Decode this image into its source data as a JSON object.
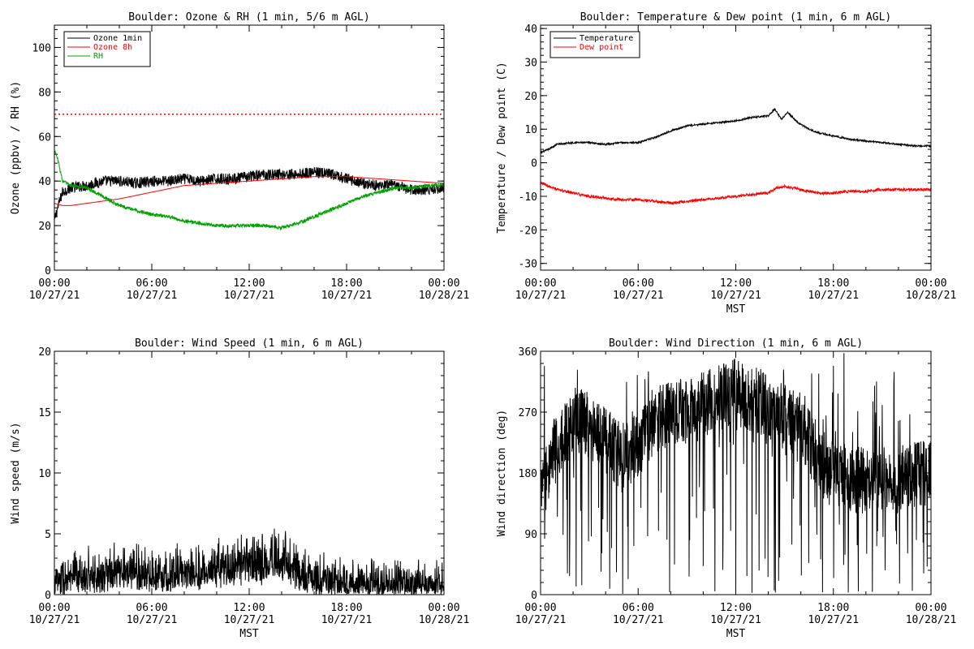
{
  "chart_data": [
    {
      "type": "line",
      "title": "Boulder: Ozone & RH (1 min, 5/6 m AGL)",
      "ylabel": "Ozone (ppbv) / RH (%)",
      "xlabel": "",
      "ylim": [
        0,
        110
      ],
      "yticks": [
        "0",
        "20",
        "40",
        "60",
        "80",
        "100"
      ],
      "xticks": [
        [
          "00:00",
          "10/27/21"
        ],
        [
          "06:00",
          "10/27/21"
        ],
        [
          "12:00",
          "10/27/21"
        ],
        [
          "18:00",
          "10/27/21"
        ],
        [
          "00:00",
          "10/28/21"
        ]
      ],
      "xlim_hours": [
        0,
        24
      ],
      "legend": "top-left",
      "reference_line": {
        "y": 70,
        "color": "#ff0000",
        "style": "dotted"
      },
      "series": [
        {
          "name": "Ozone 1min",
          "color": "#000000",
          "noise": 2.5,
          "x": [
            0,
            0.2,
            0.5,
            1,
            2,
            3,
            4,
            5,
            6,
            7,
            8,
            9,
            10,
            11,
            12,
            13,
            14,
            15,
            16,
            17,
            18,
            19,
            20,
            21,
            22,
            23,
            24
          ],
          "y": [
            22,
            28,
            35,
            37,
            38,
            40,
            40,
            39,
            40,
            40,
            41,
            40,
            41,
            41,
            42,
            43,
            43,
            43,
            44,
            43,
            41,
            39,
            38,
            38,
            36,
            36,
            37
          ]
        },
        {
          "name": "Ozone 8h",
          "color": "#ff0000",
          "noise": 0,
          "x": [
            0,
            0.5,
            1,
            2,
            3,
            4,
            6,
            8,
            10,
            12,
            14,
            16,
            18,
            20,
            22,
            24
          ],
          "y": [
            30,
            29,
            29,
            30,
            31,
            32,
            35,
            38,
            39,
            40,
            41,
            42,
            42,
            41,
            40,
            39
          ]
        },
        {
          "name": "RH",
          "color": "#00a000",
          "noise": 0.8,
          "x": [
            0,
            0.2,
            0.5,
            1,
            2,
            3,
            4,
            5,
            6,
            7,
            8,
            9,
            10,
            11,
            12,
            13,
            14,
            15,
            16,
            17,
            18,
            19,
            20,
            21,
            22,
            23,
            24
          ],
          "y": [
            54,
            50,
            40,
            38,
            37,
            33,
            29,
            27,
            25,
            24,
            22,
            21,
            20,
            20,
            20,
            20,
            19,
            21,
            24,
            27,
            30,
            33,
            35,
            37,
            37,
            38,
            38
          ]
        }
      ]
    },
    {
      "type": "line",
      "title": "Boulder: Temperature & Dew point (1 min, 6 m AGL)",
      "ylabel": "Temperature / Dew point (C)",
      "xlabel": "MST",
      "ylim": [
        -32,
        41
      ],
      "yticks": [
        "-30",
        "-20",
        "-10",
        "0",
        "10",
        "20",
        "30",
        "40"
      ],
      "xticks": [
        [
          "00:00",
          "10/27/21"
        ],
        [
          "06:00",
          "10/27/21"
        ],
        [
          "12:00",
          "10/27/21"
        ],
        [
          "18:00",
          "10/27/21"
        ],
        [
          "00:00",
          "10/28/21"
        ]
      ],
      "xlim_hours": [
        0,
        24
      ],
      "legend": "top-left",
      "series": [
        {
          "name": "Temperature",
          "color": "#000000",
          "noise": 0.25,
          "x": [
            0,
            0.5,
            1,
            2,
            3,
            4,
            5,
            6,
            7,
            8,
            9,
            10,
            11,
            12,
            13,
            14,
            14.4,
            14.8,
            15.2,
            15.8,
            16.5,
            17,
            18,
            19,
            20,
            21,
            22,
            23,
            24
          ],
          "y": [
            3,
            4,
            5.5,
            6,
            6,
            5.5,
            6,
            6,
            7.5,
            9.5,
            11,
            11.5,
            12,
            12.5,
            13.5,
            14,
            16,
            13,
            15,
            12,
            10,
            9,
            8,
            7,
            6.5,
            6,
            5.5,
            5,
            5
          ]
        },
        {
          "name": "Dew point",
          "color": "#ff0000",
          "noise": 0.4,
          "x": [
            0,
            0.5,
            1,
            2,
            3,
            4,
            5,
            6,
            7,
            8,
            9,
            10,
            11,
            12,
            13,
            14,
            14.5,
            15,
            16,
            17,
            18,
            19,
            20,
            21,
            22,
            23,
            24
          ],
          "y": [
            -6,
            -7,
            -8,
            -9,
            -10,
            -10.5,
            -11,
            -11,
            -11.5,
            -12,
            -11.5,
            -11,
            -10.5,
            -10,
            -9.5,
            -9,
            -7.5,
            -7,
            -8,
            -9,
            -9,
            -8.5,
            -8.5,
            -8,
            -8,
            -8,
            -8
          ]
        }
      ]
    },
    {
      "type": "line",
      "title": "Boulder: Wind Speed (1 min, 6 m AGL)",
      "ylabel": "Wind speed (m/s)",
      "xlabel": "MST",
      "ylim": [
        0,
        20
      ],
      "yticks": [
        "0",
        "5",
        "10",
        "15",
        "20"
      ],
      "xticks": [
        [
          "00:00",
          "10/27/21"
        ],
        [
          "06:00",
          "10/27/21"
        ],
        [
          "12:00",
          "10/27/21"
        ],
        [
          "18:00",
          "10/27/21"
        ],
        [
          "00:00",
          "10/28/21"
        ]
      ],
      "xlim_hours": [
        0,
        24
      ],
      "series": [
        {
          "name": "",
          "color": "#000000",
          "noise": 1.3,
          "x": [
            0,
            1,
            2,
            3,
            4,
            5,
            6,
            7,
            8,
            9,
            10,
            11,
            12,
            13,
            14,
            15,
            16,
            17,
            18,
            19,
            20,
            21,
            22,
            23,
            24
          ],
          "y": [
            1,
            1.3,
            1.5,
            1.5,
            1.8,
            1.8,
            1.6,
            1.5,
            1.8,
            1.8,
            2,
            2.2,
            2.5,
            2.5,
            2.8,
            1.8,
            1.2,
            1,
            1,
            0.9,
            0.8,
            0.8,
            0.8,
            0.7,
            0.7
          ]
        }
      ]
    },
    {
      "type": "line",
      "title": "Boulder: Wind Direction (1 min, 6 m AGL)",
      "ylabel": "Wind direction (deg)",
      "xlabel": "MST",
      "ylim": [
        0,
        360
      ],
      "yticks": [
        "0",
        "90",
        "180",
        "270",
        "360"
      ],
      "xticks": [
        [
          "00:00",
          "10/27/21"
        ],
        [
          "06:00",
          "10/27/21"
        ],
        [
          "12:00",
          "10/27/21"
        ],
        [
          "18:00",
          "10/27/21"
        ],
        [
          "00:00",
          "10/28/21"
        ]
      ],
      "xlim_hours": [
        0,
        24
      ],
      "series": [
        {
          "name": "",
          "color": "#000000",
          "noise": 50,
          "spikes": 0.12,
          "x": [
            0,
            1,
            2,
            3,
            4,
            5,
            6,
            7,
            8,
            9,
            10,
            11,
            12,
            13,
            14,
            15,
            16,
            17,
            18,
            19,
            20,
            21,
            22,
            23,
            24
          ],
          "y": [
            150,
            220,
            260,
            250,
            230,
            200,
            220,
            260,
            270,
            270,
            280,
            290,
            300,
            290,
            280,
            260,
            250,
            200,
            180,
            170,
            170,
            170,
            170,
            180,
            180
          ]
        }
      ]
    }
  ]
}
